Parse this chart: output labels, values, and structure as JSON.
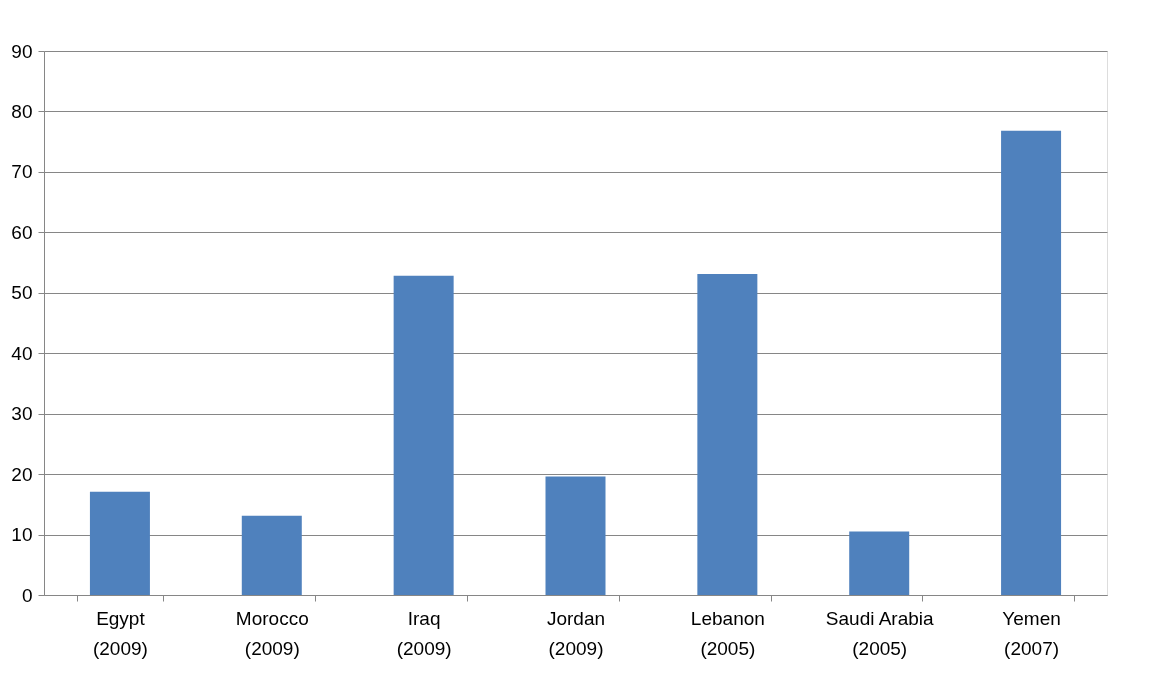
{
  "chart_data": {
    "type": "bar",
    "categories": [
      "Egypt (2009)",
      "Morocco (2009)",
      "Iraq (2009)",
      "Jordan (2009)",
      "Lebanon (2005)",
      "Saudi Arabia (2005)",
      "Yemen (2007)"
    ],
    "values": [
      17.1,
      13.1,
      52.8,
      19.6,
      53.1,
      10.5,
      76.8
    ],
    "color": "#4f81bd",
    "ylim": [
      0,
      90
    ],
    "yticks": [
      0,
      10,
      20,
      30,
      40,
      50,
      60,
      70,
      80,
      90
    ],
    "grid": "y"
  }
}
